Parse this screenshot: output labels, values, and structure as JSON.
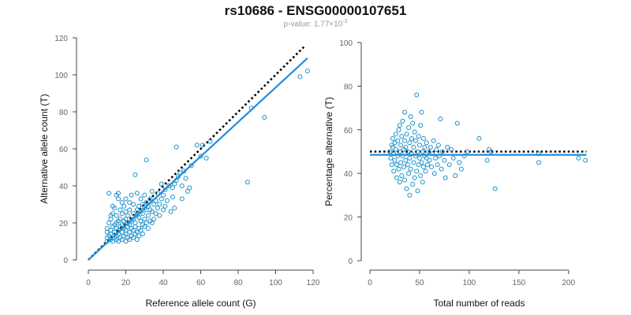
{
  "header": {
    "title": "rs10686 - ENSG00000107651",
    "pvalue_prefix": "p-value: 1.77×10",
    "pvalue_exponent": "-3"
  },
  "colors": {
    "points": "#1a8fc9",
    "fit_line": "#1f8de3",
    "reference_line": "#000000",
    "axis": "#444444",
    "tick_label": "#666666",
    "axis_label": "#111111"
  },
  "chart_data": [
    {
      "type": "scatter",
      "title": "",
      "xlabel": "Reference allele count (G)",
      "ylabel": "Alternative allele count (T)",
      "xlim": [
        0,
        120
      ],
      "ylim": [
        0,
        120
      ],
      "xticks": [
        0,
        20,
        40,
        60,
        80,
        100,
        120
      ],
      "yticks": [
        0,
        20,
        40,
        60,
        80,
        100,
        120
      ],
      "reference_line": {
        "style": "dotted",
        "points": [
          [
            0,
            0
          ],
          [
            116,
            116
          ]
        ]
      },
      "fit_line": {
        "style": "solid",
        "points": [
          [
            0,
            0
          ],
          [
            117,
            109
          ]
        ]
      },
      "points": [
        [
          10,
          10
        ],
        [
          10,
          12
        ],
        [
          10,
          15
        ],
        [
          10,
          17
        ],
        [
          11,
          13
        ],
        [
          11,
          20
        ],
        [
          11,
          36
        ],
        [
          12,
          14
        ],
        [
          12,
          16
        ],
        [
          12,
          22
        ],
        [
          12,
          24
        ],
        [
          12,
          11
        ],
        [
          13,
          10
        ],
        [
          13,
          18
        ],
        [
          13,
          25
        ],
        [
          13,
          29
        ],
        [
          14,
          12
        ],
        [
          14,
          15
        ],
        [
          14,
          19
        ],
        [
          14,
          28
        ],
        [
          15,
          11
        ],
        [
          15,
          13
        ],
        [
          15,
          17
        ],
        [
          15,
          20
        ],
        [
          15,
          24
        ],
        [
          15,
          35
        ],
        [
          16,
          10
        ],
        [
          16,
          14
        ],
        [
          16,
          16
        ],
        [
          16,
          21
        ],
        [
          16,
          33
        ],
        [
          16,
          36
        ],
        [
          17,
          12
        ],
        [
          17,
          18
        ],
        [
          17,
          22
        ],
        [
          17,
          27
        ],
        [
          18,
          11
        ],
        [
          18,
          15
        ],
        [
          18,
          19
        ],
        [
          18,
          25
        ],
        [
          18,
          31
        ],
        [
          19,
          13
        ],
        [
          19,
          17
        ],
        [
          19,
          21
        ],
        [
          19,
          29
        ],
        [
          20,
          10
        ],
        [
          20,
          14
        ],
        [
          20,
          16
        ],
        [
          20,
          22
        ],
        [
          20,
          26
        ],
        [
          20,
          33
        ],
        [
          21,
          12
        ],
        [
          21,
          18
        ],
        [
          21,
          20
        ],
        [
          21,
          24
        ],
        [
          22,
          11
        ],
        [
          22,
          15
        ],
        [
          22,
          19
        ],
        [
          22,
          27
        ],
        [
          22,
          31
        ],
        [
          23,
          13
        ],
        [
          23,
          17
        ],
        [
          23,
          21
        ],
        [
          23,
          35
        ],
        [
          24,
          12
        ],
        [
          24,
          16
        ],
        [
          24,
          22
        ],
        [
          24,
          25
        ],
        [
          24,
          30
        ],
        [
          25,
          14
        ],
        [
          25,
          18
        ],
        [
          25,
          20
        ],
        [
          25,
          46
        ],
        [
          26,
          11
        ],
        [
          26,
          15
        ],
        [
          26,
          24
        ],
        [
          26,
          27
        ],
        [
          26,
          36
        ],
        [
          27,
          13
        ],
        [
          27,
          17
        ],
        [
          27,
          23
        ],
        [
          27,
          29
        ],
        [
          28,
          16
        ],
        [
          28,
          21
        ],
        [
          28,
          26
        ],
        [
          28,
          33
        ],
        [
          29,
          14
        ],
        [
          29,
          19
        ],
        [
          29,
          25
        ],
        [
          29,
          30
        ],
        [
          30,
          18
        ],
        [
          30,
          22
        ],
        [
          30,
          28
        ],
        [
          30,
          35
        ],
        [
          31,
          20
        ],
        [
          31,
          27
        ],
        [
          31,
          31
        ],
        [
          31,
          54
        ],
        [
          32,
          17
        ],
        [
          32,
          24
        ],
        [
          32,
          29
        ],
        [
          33,
          21
        ],
        [
          33,
          27
        ],
        [
          33,
          33
        ],
        [
          34,
          20
        ],
        [
          34,
          26
        ],
        [
          34,
          37
        ],
        [
          35,
          22
        ],
        [
          35,
          30
        ],
        [
          36,
          25
        ],
        [
          36,
          32
        ],
        [
          37,
          28
        ],
        [
          37,
          36
        ],
        [
          38,
          24
        ],
        [
          38,
          30
        ],
        [
          39,
          33
        ],
        [
          39,
          41
        ],
        [
          40,
          27
        ],
        [
          40,
          35
        ],
        [
          41,
          29
        ],
        [
          41,
          38
        ],
        [
          42,
          32
        ],
        [
          43,
          40
        ],
        [
          44,
          26
        ],
        [
          45,
          34
        ],
        [
          45,
          39
        ],
        [
          46,
          28
        ],
        [
          46,
          41
        ],
        [
          47,
          43
        ],
        [
          47,
          61
        ],
        [
          48,
          45
        ],
        [
          49,
          47
        ],
        [
          50,
          33
        ],
        [
          50,
          40
        ],
        [
          51,
          48
        ],
        [
          52,
          44
        ],
        [
          53,
          37
        ],
        [
          54,
          39
        ],
        [
          55,
          51
        ],
        [
          58,
          62
        ],
        [
          60,
          56
        ],
        [
          61,
          62
        ],
        [
          63,
          55
        ],
        [
          65,
          64
        ],
        [
          85,
          42
        ],
        [
          87,
          82
        ],
        [
          94,
          77
        ],
        [
          113,
          99
        ],
        [
          117,
          102
        ]
      ]
    },
    {
      "type": "scatter",
      "title": "",
      "xlabel": "Total number of reads",
      "ylabel": "Percentage alternative (T)",
      "xlim": [
        0,
        220
      ],
      "ylim": [
        0,
        100
      ],
      "xticks": [
        0,
        50,
        100,
        150,
        200
      ],
      "yticks": [
        0,
        20,
        40,
        60,
        80,
        100
      ],
      "reference_line": {
        "style": "dotted",
        "y": 50,
        "x_range": [
          0,
          218
        ]
      },
      "fit_line": {
        "style": "solid",
        "y": 48.5,
        "x_range": [
          0,
          218
        ]
      },
      "points": [
        [
          20,
          50
        ],
        [
          21,
          47
        ],
        [
          22,
          53
        ],
        [
          22,
          44
        ],
        [
          23,
          52
        ],
        [
          23,
          56
        ],
        [
          24,
          41
        ],
        [
          24,
          49
        ],
        [
          25,
          54
        ],
        [
          25,
          46
        ],
        [
          26,
          51
        ],
        [
          26,
          58
        ],
        [
          27,
          44
        ],
        [
          27,
          38
        ],
        [
          28,
          55
        ],
        [
          28,
          48
        ],
        [
          29,
          60
        ],
        [
          29,
          42
        ],
        [
          30,
          50
        ],
        [
          30,
          36
        ],
        [
          30,
          62
        ],
        [
          31,
          45
        ],
        [
          31,
          53
        ],
        [
          32,
          39
        ],
        [
          32,
          57
        ],
        [
          33,
          48
        ],
        [
          33,
          64
        ],
        [
          34,
          43
        ],
        [
          34,
          51
        ],
        [
          35,
          37
        ],
        [
          35,
          55
        ],
        [
          35,
          68
        ],
        [
          36,
          46
        ],
        [
          36,
          52
        ],
        [
          37,
          33
        ],
        [
          37,
          58
        ],
        [
          38,
          44
        ],
        [
          38,
          50
        ],
        [
          39,
          40
        ],
        [
          39,
          61
        ],
        [
          40,
          47
        ],
        [
          40,
          54
        ],
        [
          40,
          30
        ],
        [
          41,
          66
        ],
        [
          41,
          42
        ],
        [
          42,
          49
        ],
        [
          42,
          56
        ],
        [
          43,
          35
        ],
        [
          43,
          63
        ],
        [
          44,
          45
        ],
        [
          44,
          52
        ],
        [
          45,
          38
        ],
        [
          45,
          59
        ],
        [
          46,
          48
        ],
        [
          46,
          55
        ],
        [
          47,
          41
        ],
        [
          47,
          76
        ],
        [
          48,
          50
        ],
        [
          48,
          32
        ],
        [
          49,
          44
        ],
        [
          49,
          57
        ],
        [
          50,
          47
        ],
        [
          50,
          53
        ],
        [
          51,
          39
        ],
        [
          51,
          62
        ],
        [
          52,
          45
        ],
        [
          52,
          68
        ],
        [
          53,
          50
        ],
        [
          53,
          36
        ],
        [
          54,
          43
        ],
        [
          54,
          56
        ],
        [
          55,
          48
        ],
        [
          55,
          52
        ],
        [
          56,
          41
        ],
        [
          57,
          47
        ],
        [
          57,
          54
        ],
        [
          58,
          44
        ],
        [
          59,
          50
        ],
        [
          60,
          46
        ],
        [
          61,
          52
        ],
        [
          62,
          43
        ],
        [
          63,
          49
        ],
        [
          64,
          55
        ],
        [
          65,
          40
        ],
        [
          66,
          47
        ],
        [
          67,
          51
        ],
        [
          68,
          44
        ],
        [
          69,
          53
        ],
        [
          70,
          48
        ],
        [
          71,
          65
        ],
        [
          72,
          42
        ],
        [
          73,
          50
        ],
        [
          75,
          46
        ],
        [
          76,
          38
        ],
        [
          78,
          52
        ],
        [
          80,
          44
        ],
        [
          82,
          51
        ],
        [
          84,
          47
        ],
        [
          86,
          39
        ],
        [
          88,
          63
        ],
        [
          90,
          45
        ],
        [
          92,
          42
        ],
        [
          95,
          48
        ],
        [
          98,
          50
        ],
        [
          110,
          56
        ],
        [
          118,
          46
        ],
        [
          120,
          51
        ],
        [
          122,
          50
        ],
        [
          126,
          33
        ],
        [
          170,
          49
        ],
        [
          170,
          45
        ],
        [
          210,
          47
        ],
        [
          217,
          46
        ]
      ]
    }
  ]
}
